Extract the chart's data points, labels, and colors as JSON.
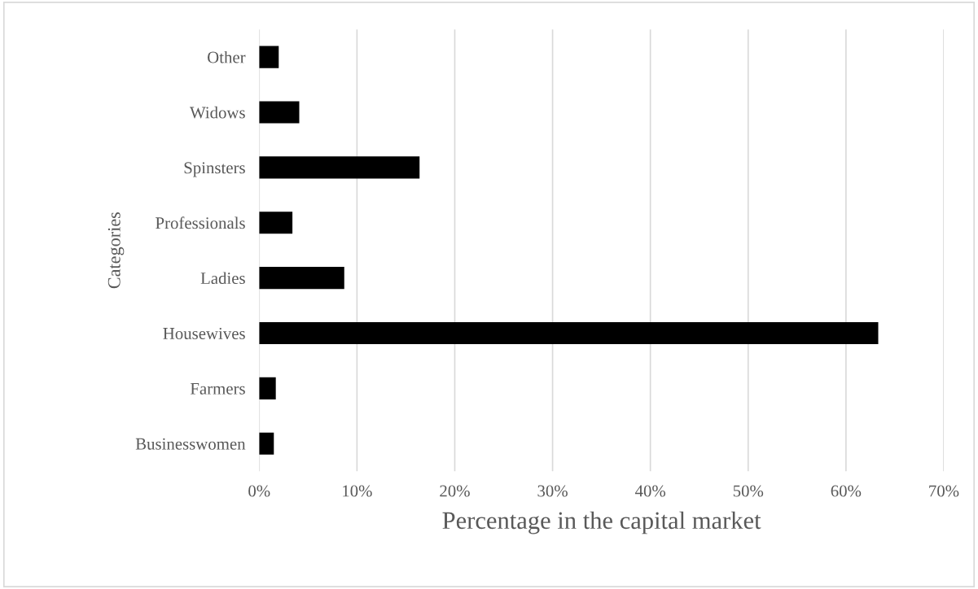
{
  "chart_data": {
    "type": "bar",
    "orientation": "horizontal",
    "xlabel": "Percentage in the capital market",
    "ylabel": "Categories",
    "categories": [
      "Other",
      "Widows",
      "Spinsters",
      "Professionals",
      "Ladies",
      "Housewives",
      "Farmers",
      "Businesswomen"
    ],
    "values": [
      2.0,
      4.1,
      16.4,
      3.4,
      8.7,
      63.3,
      1.7,
      1.5
    ],
    "color": "#000000",
    "xlim": [
      0,
      70
    ],
    "xticks": [
      {
        "value": 0,
        "label": "0%"
      },
      {
        "value": 10,
        "label": "10%"
      },
      {
        "value": 20,
        "label": "20%"
      },
      {
        "value": 30,
        "label": "30%"
      },
      {
        "value": 40,
        "label": "40%"
      },
      {
        "value": 50,
        "label": "50%"
      },
      {
        "value": 60,
        "label": "60%"
      },
      {
        "value": 70,
        "label": "70%"
      }
    ],
    "grid": "x",
    "legend": false
  }
}
